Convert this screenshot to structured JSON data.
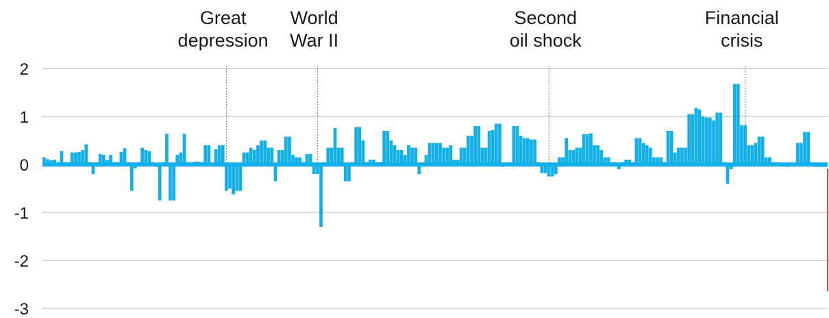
{
  "chart_data": {
    "type": "bar",
    "title": "",
    "xlabel": "",
    "ylabel": "",
    "ylim": [
      -3,
      2
    ],
    "yticks": [
      2,
      1,
      0,
      -1,
      -2,
      -3
    ],
    "grid": true,
    "x_index_range": [
      1,
      230
    ],
    "series": [
      {
        "values": [
          0.15,
          0.11,
          0.09,
          0.1,
          0.05,
          0.28,
          0.05,
          0.05,
          0.25,
          0.25,
          0.26,
          0.3,
          0.42,
          0.05,
          -0.2,
          0.05,
          0.22,
          0.2,
          0.1,
          0.2,
          0.05,
          0.05,
          0.26,
          0.34,
          0.05,
          -0.55,
          -0.08,
          0.05,
          0.35,
          0.3,
          0.28,
          0.05,
          -0.05,
          -0.75,
          0.05,
          0.64,
          -0.75,
          -0.75,
          0.2,
          0.25,
          0.64,
          0.05,
          -0.02,
          0.06,
          0.06,
          0.05,
          0.4,
          0.4,
          0.02,
          0.32,
          0.4,
          0.4,
          -0.55,
          -0.5,
          -0.62,
          -0.55,
          -0.55,
          0.25,
          0.25,
          0.35,
          0.3,
          0.4,
          0.5,
          0.5,
          0.35,
          0.35,
          -0.35,
          0.3,
          0.3,
          0.58,
          0.58,
          0.2,
          0.15,
          0.15,
          0.05,
          0.22,
          0.22,
          -0.2,
          -0.2,
          -1.3,
          0.05,
          0.35,
          0.35,
          0.76,
          0.35,
          0.35,
          -0.35,
          -0.35,
          0.05,
          0.78,
          0.78,
          0.5,
          0.05,
          0.1,
          0.1,
          0.05,
          0.05,
          0.7,
          0.7,
          0.5,
          0.4,
          0.3,
          0.3,
          0.2,
          0.4,
          0.35,
          0.35,
          -0.2,
          0.05,
          0.2,
          0.45,
          0.45,
          0.45,
          0.45,
          0.35,
          0.35,
          0.4,
          0.1,
          0.1,
          0.35,
          0.35,
          0.6,
          0.6,
          0.8,
          0.8,
          0.35,
          0.35,
          0.7,
          0.72,
          0.85,
          0.85,
          -0.05,
          0.02,
          0.05,
          0.8,
          0.8,
          0.6,
          0.55,
          0.55,
          0.52,
          0.52,
          0.05,
          -0.18,
          -0.18,
          -0.25,
          -0.25,
          -0.2,
          0.15,
          0.15,
          0.55,
          0.3,
          0.3,
          0.35,
          0.35,
          0.63,
          0.63,
          0.65,
          0.4,
          0.4,
          0.3,
          0.15,
          0.15,
          0.05,
          0.05,
          -0.1,
          0.05,
          0.1,
          0.1,
          0.05,
          0.55,
          0.55,
          0.45,
          0.4,
          0.35,
          0.15,
          0.15,
          0.15,
          0.05,
          0.7,
          0.7,
          0.25,
          0.35,
          0.35,
          0.35,
          1.05,
          1.05,
          1.18,
          1.15,
          1.0,
          0.98,
          0.98,
          0.92,
          1.08,
          1.08,
          0.05,
          -0.4,
          -0.1,
          1.68,
          1.68,
          0.82,
          0.82,
          0.4,
          0.4,
          0.45,
          0.58,
          0.58,
          0.15,
          0.15,
          0.05,
          0.05,
          0.02,
          0.0,
          -0.05,
          0.02,
          0.02,
          0.45,
          0.45,
          0.68,
          0.68,
          0.05,
          -0.05,
          -0.05,
          -0.05,
          -0.05
        ]
      }
    ],
    "annotations": [
      {
        "lines": [
          "Great",
          "depression"
        ],
        "at_index": 53
      },
      {
        "lines": [
          "World",
          "War II"
        ],
        "at_index": 79
      },
      {
        "lines": [
          "Second",
          "oil shock"
        ],
        "at_index": 145
      },
      {
        "lines": [
          "Financial",
          "crisis"
        ],
        "at_index": 201
      }
    ],
    "colors": {
      "bar": "#12b0ea",
      "grid": "#d9d9d9",
      "text": "#1a1a1a",
      "event_line": "#8c8c8c",
      "edge_line": "#ff3b3b"
    }
  }
}
